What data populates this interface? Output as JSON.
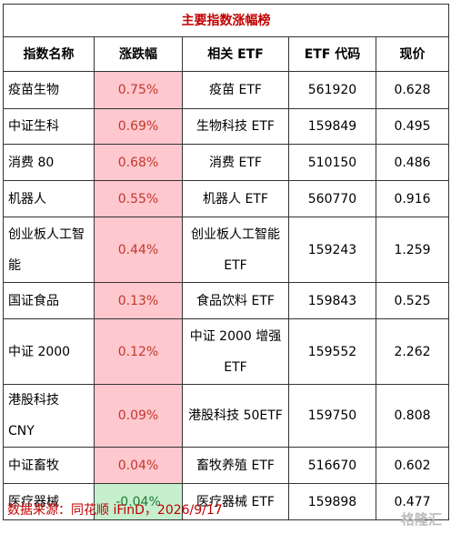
{
  "table": {
    "title": "主要指数涨幅榜",
    "header": [
      "指数名称",
      "涨跌幅",
      "相关 ETF",
      "ETF 代码",
      "现价"
    ],
    "rows": [
      [
        "疫苗生物",
        "0.75%",
        "疫苗 ETF",
        "561920",
        "0.628"
      ],
      [
        "中证生科",
        "0.69%",
        "生物科技 ETF",
        "159849",
        "0.495"
      ],
      [
        "消费 80",
        "0.68%",
        "消费 ETF",
        "510150",
        "0.486"
      ],
      [
        "机器人",
        "0.55%",
        "机器人 ETF",
        "560770",
        "0.916"
      ],
      [
        "创业板人工智能",
        "0.44%",
        "创业板人工智能 ETF",
        "159243",
        "1.259"
      ],
      [
        "国证食品",
        "0.13%",
        "食品饮料 ETF",
        "159843",
        "0.525"
      ],
      [
        "中证 2000",
        "0.12%",
        "中证 2000 增强 ETF",
        "159552",
        "2.262"
      ],
      [
        "港股科技 CNY",
        "0.09%",
        "港股科技 50ETF",
        "159750",
        "0.808"
      ],
      [
        "中证畜牧",
        "0.04%",
        "畜牧养殖 ETF",
        "516670",
        "0.602"
      ],
      [
        "医疗器械",
        "-0.04%",
        "医疗器械 ETF",
        "159898",
        "0.477"
      ]
    ],
    "change_fill": [
      "#ffc7ce",
      "#ffc7ce",
      "#ffc7ce",
      "#ffc7ce",
      "#ffc7ce",
      "#ffc7ce",
      "#ffc7ce",
      "#ffc7ce",
      "#ffc7ce",
      "#c6efce"
    ],
    "change_text_color": [
      "#c0392b",
      "#c0392b",
      "#c0392b",
      "#c0392b",
      "#c0392b",
      "#c0392b",
      "#c0392b",
      "#c0392b",
      "#c0392b",
      "#1e7b34"
    ]
  },
  "footer": {
    "source": "数据来源：同花顺 iFinD，2026/9/17",
    "watermark": "格隆汇"
  }
}
